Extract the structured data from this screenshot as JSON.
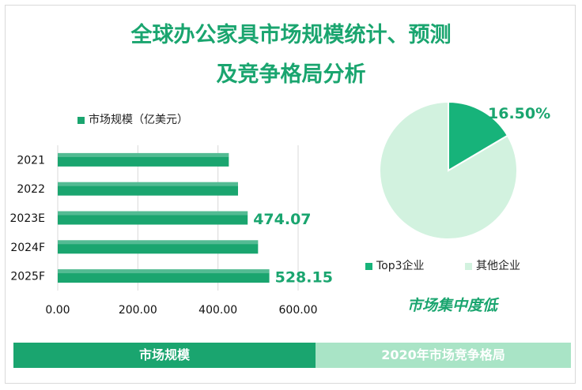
{
  "header": {
    "title_line1": "全球办公家具市场规模统计、预测",
    "title_line2": "及竞争格局分析"
  },
  "colors": {
    "accent": "#1aa56f",
    "bar": "#1aa56f",
    "pie_top3": "#17b37a",
    "pie_other": "#d2f2df"
  },
  "chart_data": [
    {
      "type": "bar",
      "orientation": "horizontal",
      "legend": "市场规模（亿美元）",
      "categories": [
        "2021",
        "2022",
        "2023E",
        "2024F",
        "2025F"
      ],
      "values": [
        427,
        450,
        474.07,
        500,
        528.15
      ],
      "data_labels": [
        "",
        "",
        "474.07",
        "",
        "528.15"
      ],
      "xlim": [
        0,
        600
      ],
      "xticks": [
        "0.00",
        "200.00",
        "400.00",
        "600.00"
      ],
      "grid": true
    },
    {
      "type": "pie",
      "labels": [
        "Top3企业",
        "其他企业"
      ],
      "values": [
        16.5,
        83.5
      ],
      "data_labels": [
        "16.50%",
        ""
      ],
      "legend_position": "bottom"
    }
  ],
  "annotation": "市场集中度低",
  "footer": {
    "left": "市场规模",
    "right": "2020年市场竞争格局"
  }
}
